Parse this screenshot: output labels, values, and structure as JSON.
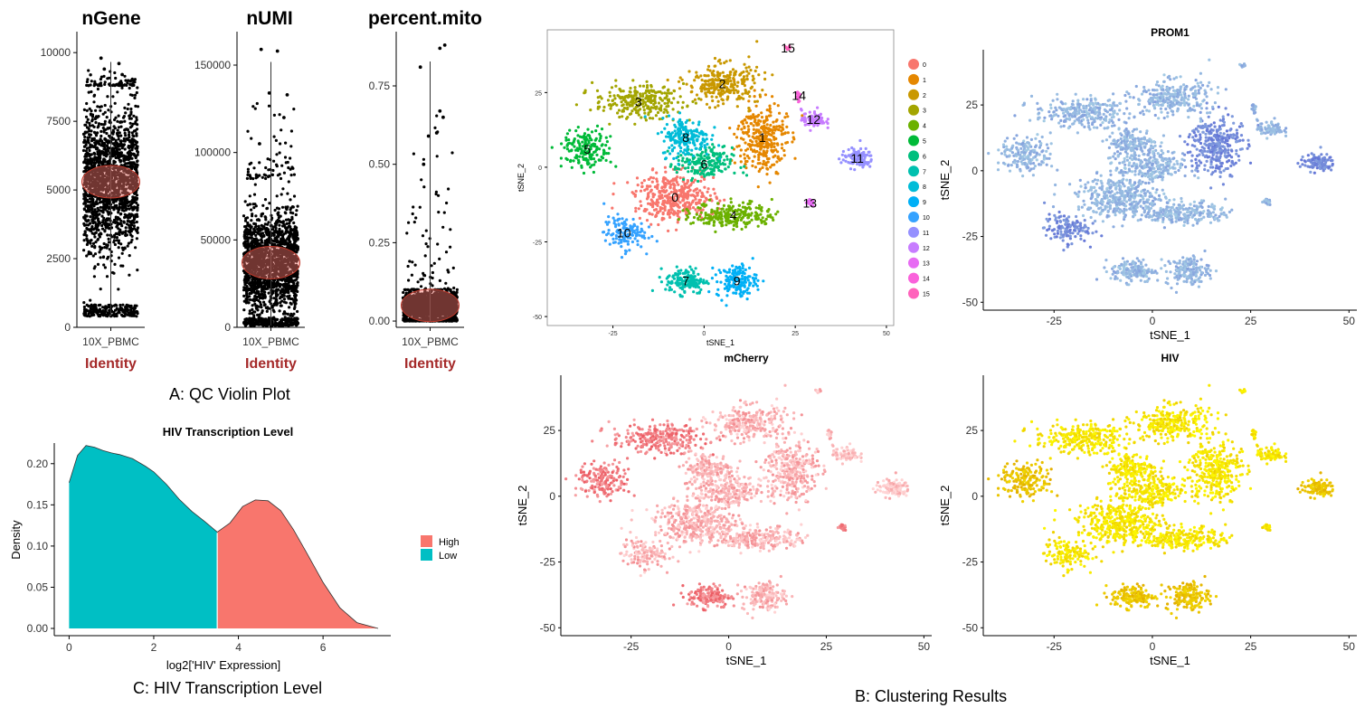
{
  "captions": {
    "qc": "A: QC Violin Plot",
    "density": "C: HIV Transcription Level",
    "clusters": "B: Clustering Results"
  },
  "colors": {
    "identity": "#a52a2a",
    "violin_fill": "#f8766d",
    "density_high": "#f8766d",
    "density_low": "#00bfc4",
    "prom1_low": "#add8e6",
    "prom1_high": "#3333cc",
    "mcherry_low": "#ffd7d7",
    "mcherry_high": "#e8434c",
    "hiv_low": "#ffff00",
    "hiv_high": "#e0a800"
  },
  "chart_data": [
    {
      "id": "violin-ngene",
      "type": "scatter",
      "subtype": "violin",
      "title": "nGene",
      "categories": [
        "10X_PBMC"
      ],
      "xlabel": "Identity",
      "ylabel": "",
      "ylim": [
        0,
        10500
      ],
      "yticks": [
        0,
        2500,
        5000,
        7500,
        10000
      ],
      "ytick_labels": [
        "0",
        "2500",
        "5000",
        "7500",
        "10000"
      ],
      "bulk_range": [
        400,
        8800
      ],
      "median": 5300,
      "outliers": [
        [
          -0.3,
          9800
        ],
        [
          0.25,
          9600
        ],
        [
          -0.2,
          9400
        ],
        [
          0.35,
          9200
        ]
      ]
    },
    {
      "id": "violin-numi",
      "type": "scatter",
      "subtype": "violin",
      "title": "nUMI",
      "categories": [
        "10X_PBMC"
      ],
      "xlabel": "Identity",
      "ylabel": "",
      "ylim": [
        0,
        165000
      ],
      "yticks": [
        0,
        50000,
        100000,
        150000
      ],
      "ytick_labels": [
        "0",
        "50000",
        "100000",
        "150000"
      ],
      "bulk_range": [
        1000,
        85000
      ],
      "median": 37000,
      "outliers": [
        [
          -0.3,
          159000
        ],
        [
          0.2,
          158000
        ],
        [
          0.5,
          133000
        ],
        [
          -0.05,
          134000
        ],
        [
          0.4,
          120000
        ],
        [
          -0.35,
          105000
        ]
      ]
    },
    {
      "id": "violin-mito",
      "type": "scatter",
      "subtype": "violin",
      "title": "percent.mito",
      "categories": [
        "10X_PBMC"
      ],
      "xlabel": "Identity",
      "ylabel": "",
      "ylim": [
        -0.02,
        0.9
      ],
      "yticks": [
        0.0,
        0.25,
        0.5,
        0.75
      ],
      "ytick_labels": [
        "0.00",
        "0.25",
        "0.50",
        "0.75"
      ],
      "bulk_range": [
        0.0,
        0.1
      ],
      "median": 0.05,
      "outliers": [
        [
          0.45,
          0.88
        ],
        [
          0.3,
          0.87
        ],
        [
          -0.3,
          0.81
        ],
        [
          0.3,
          0.67
        ],
        [
          0.4,
          0.65
        ],
        [
          -0.05,
          0.59
        ],
        [
          0.2,
          0.6
        ],
        [
          -0.2,
          0.5
        ]
      ]
    },
    {
      "id": "hiv-density",
      "type": "area",
      "title": "HIV Transcription Level",
      "xlabel": "log2['HIV' Expression]",
      "ylabel": "Density",
      "xlim": [
        -0.35,
        7.6
      ],
      "ylim": [
        0,
        0.225
      ],
      "xticks": [
        0,
        2,
        4,
        6
      ],
      "yticks": [
        0.0,
        0.05,
        0.1,
        0.15,
        0.2
      ],
      "ytick_labels": [
        "0.00",
        "0.05",
        "0.10",
        "0.15",
        "0.20"
      ],
      "split_at": 3.5,
      "legend": [
        "High",
        "Low"
      ],
      "legend_position": "right",
      "x": [
        0,
        0.2,
        0.4,
        0.6,
        0.8,
        1.0,
        1.2,
        1.5,
        1.8,
        2.0,
        2.3,
        2.6,
        2.9,
        3.2,
        3.5,
        3.8,
        4.1,
        4.4,
        4.7,
        5.0,
        5.3,
        5.6,
        6.0,
        6.4,
        6.8,
        7.3
      ],
      "y": [
        0.177,
        0.21,
        0.222,
        0.22,
        0.216,
        0.213,
        0.211,
        0.206,
        0.197,
        0.19,
        0.175,
        0.157,
        0.142,
        0.13,
        0.117,
        0.128,
        0.148,
        0.156,
        0.155,
        0.143,
        0.12,
        0.093,
        0.056,
        0.025,
        0.007,
        0.0
      ]
    },
    {
      "id": "tsne-clusters",
      "type": "scatter",
      "title": "",
      "xlabel": "tSNE_1",
      "ylabel": "tSNE_2",
      "xlim": [
        -43,
        52
      ],
      "ylim": [
        -53,
        46
      ],
      "xticks": [
        -25,
        0,
        25,
        50
      ],
      "yticks": [
        -50,
        -25,
        0,
        25
      ],
      "legend": [
        "0",
        "1",
        "2",
        "3",
        "4",
        "5",
        "6",
        "7",
        "8",
        "9",
        "10",
        "11",
        "12",
        "13",
        "14",
        "15"
      ],
      "legend_position": "right",
      "series": [
        {
          "name": "0",
          "color": "#f8766d",
          "center": [
            -8,
            -10
          ],
          "spread": [
            10,
            7
          ],
          "n": 400
        },
        {
          "name": "1",
          "color": "#e58700",
          "center": [
            16,
            10
          ],
          "spread": [
            6,
            11
          ],
          "n": 320
        },
        {
          "name": "2",
          "color": "#c99800",
          "center": [
            5,
            28
          ],
          "spread": [
            9,
            6
          ],
          "n": 260
        },
        {
          "name": "3",
          "color": "#a3a500",
          "center": [
            -18,
            22
          ],
          "spread": [
            11,
            5
          ],
          "n": 260
        },
        {
          "name": "4",
          "color": "#6bb100",
          "center": [
            8,
            -16
          ],
          "spread": [
            10,
            4
          ],
          "n": 230
        },
        {
          "name": "5",
          "color": "#00ba38",
          "center": [
            -32,
            6
          ],
          "spread": [
            6,
            6
          ],
          "n": 180
        },
        {
          "name": "6",
          "color": "#00bf7d",
          "center": [
            0,
            1
          ],
          "spread": [
            7,
            5
          ],
          "n": 200
        },
        {
          "name": "7",
          "color": "#00c0af",
          "center": [
            -5,
            -38
          ],
          "spread": [
            5,
            4
          ],
          "n": 150
        },
        {
          "name": "8",
          "color": "#00bcd8",
          "center": [
            -5,
            10
          ],
          "spread": [
            6,
            6
          ],
          "n": 190
        },
        {
          "name": "9",
          "color": "#00b0f6",
          "center": [
            9,
            -38
          ],
          "spread": [
            5,
            5
          ],
          "n": 150
        },
        {
          "name": "10",
          "color": "#35a2ff",
          "center": [
            -22,
            -22
          ],
          "spread": [
            5,
            5
          ],
          "n": 130
        },
        {
          "name": "11",
          "color": "#9590ff",
          "center": [
            42,
            3
          ],
          "spread": [
            4,
            3
          ],
          "n": 110
        },
        {
          "name": "12",
          "color": "#c77cff",
          "center": [
            30,
            16
          ],
          "spread": [
            3,
            3
          ],
          "n": 80
        },
        {
          "name": "13",
          "color": "#e76bf3",
          "center": [
            29,
            -12
          ],
          "spread": [
            1,
            1
          ],
          "n": 15
        },
        {
          "name": "14",
          "color": "#fa62db",
          "center": [
            26,
            24
          ],
          "spread": [
            0.6,
            2
          ],
          "n": 15
        },
        {
          "name": "15",
          "color": "#ff62bc",
          "center": [
            23,
            40
          ],
          "spread": [
            1,
            0.5
          ],
          "n": 10
        }
      ]
    },
    {
      "id": "tsne-prom1",
      "type": "scatter",
      "title": "PROM1",
      "xlabel": "tSNE_1",
      "ylabel": "tSNE_2",
      "xlim": [
        -43,
        52
      ],
      "ylim": [
        -53,
        46
      ],
      "xticks": [
        -25,
        0,
        25,
        50
      ],
      "yticks": [
        -50,
        -25,
        0,
        25
      ]
    },
    {
      "id": "tsne-mcherry",
      "type": "scatter",
      "title": "mCherry",
      "xlabel": "tSNE_1",
      "ylabel": "tSNE_2",
      "xlim": [
        -43,
        52
      ],
      "ylim": [
        -53,
        46
      ],
      "xticks": [
        -25,
        0,
        25,
        50
      ],
      "yticks": [
        -50,
        -25,
        0,
        25
      ]
    },
    {
      "id": "tsne-hiv",
      "type": "scatter",
      "title": "HIV",
      "xlabel": "tSNE_1",
      "ylabel": "tSNE_2",
      "xlim": [
        -43,
        52
      ],
      "ylim": [
        -53,
        46
      ],
      "xticks": [
        -25,
        0,
        25,
        50
      ],
      "yticks": [
        -50,
        -25,
        0,
        25
      ]
    }
  ]
}
